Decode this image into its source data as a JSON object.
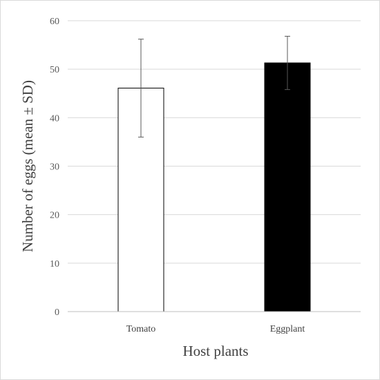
{
  "chart_data": {
    "type": "bar",
    "title": "",
    "xlabel": "Host plants",
    "ylabel": "Number of eggs (mean ± SD)",
    "categories": [
      "Tomato",
      "Eggplant"
    ],
    "values": [
      46.1,
      51.3
    ],
    "error": [
      10.1,
      5.5
    ],
    "bar_fill": [
      "#ffffff",
      "#000000"
    ],
    "bar_stroke": "#000000",
    "ylim": [
      0,
      60
    ],
    "yticks": [
      0,
      10,
      20,
      30,
      40,
      50,
      60
    ],
    "grid": true,
    "grid_color": "#d9d9d9",
    "legend": "none"
  }
}
